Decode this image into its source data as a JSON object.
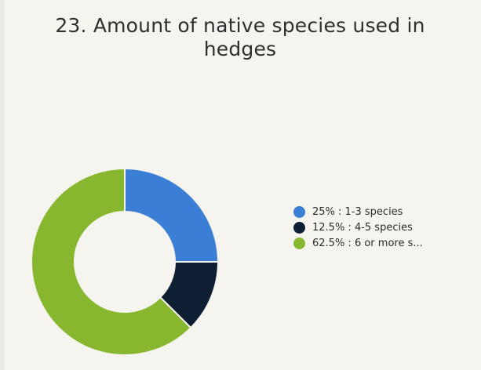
{
  "chart_data": {
    "type": "pie",
    "title": "23. Amount of native species used in hedges",
    "title_lines": [
      "23. Amount of native species used in",
      "hedges"
    ],
    "donut": true,
    "legend_position": "right",
    "slices": [
      {
        "label": "25% : 1-3 species",
        "value": 25,
        "color": "#3a7fd5"
      },
      {
        "label": "12.5% : 4-5 species",
        "value": 12.5,
        "color": "#0e1e33"
      },
      {
        "label": "62.5% : 6 or more s...",
        "value": 62.5,
        "color": "#86b72e"
      }
    ]
  }
}
